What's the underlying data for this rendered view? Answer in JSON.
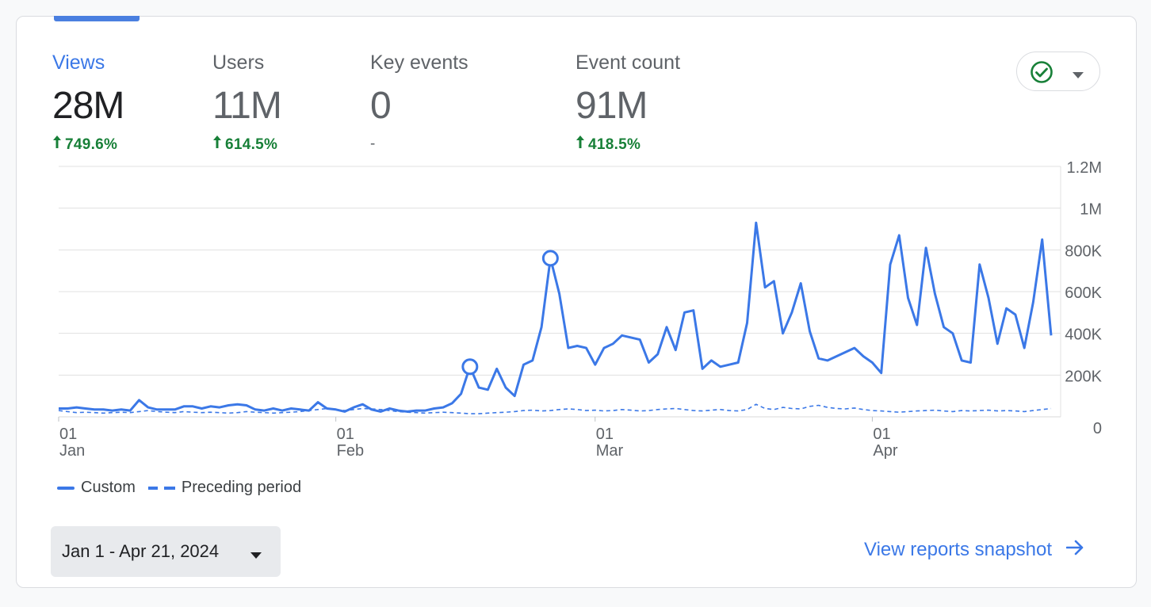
{
  "metrics": [
    {
      "label": "Views",
      "value": "28M",
      "change": "749.6%",
      "direction": "up",
      "active": true
    },
    {
      "label": "Users",
      "value": "11M",
      "change": "614.5%",
      "direction": "up",
      "active": false
    },
    {
      "label": "Key events",
      "value": "0",
      "change": "-",
      "direction": "none",
      "active": false
    },
    {
      "label": "Event count",
      "value": "91M",
      "change": "418.5%",
      "direction": "up",
      "active": false
    }
  ],
  "status_button": {
    "icon": "check-circle-icon",
    "caret_icon": "caret-down-icon",
    "check_color": "#188038"
  },
  "legend": {
    "current": "Custom",
    "previous": "Preceding period"
  },
  "date_range": {
    "label": "Jan 1 - Apr 21, 2024",
    "caret_icon": "caret-down-icon"
  },
  "snapshot_link": {
    "label": "View reports snapshot",
    "icon": "arrow-right-icon"
  },
  "colors": {
    "accent": "#3b78e7",
    "positive": "#188038",
    "grid": "#e0e0e0"
  },
  "chart_data": {
    "type": "line",
    "title": "",
    "xlabel": "",
    "ylabel": "",
    "x_start": "2024-01-01",
    "x_end": "2024-04-21",
    "x_ticks": [
      {
        "day": "01",
        "month": "Jan",
        "date": "2024-01-01"
      },
      {
        "day": "01",
        "month": "Feb",
        "date": "2024-02-01"
      },
      {
        "day": "01",
        "month": "Mar",
        "date": "2024-03-01"
      },
      {
        "day": "01",
        "month": "Apr",
        "date": "2024-04-01"
      }
    ],
    "y_ticks": [
      "0",
      "200K",
      "400K",
      "600K",
      "800K",
      "1M",
      "1.2M"
    ],
    "ylim": [
      0,
      1200000
    ],
    "grid": true,
    "axis_side": "right",
    "series": [
      {
        "name": "Custom",
        "style": "solid",
        "values": [
          40000,
          40000,
          45000,
          40000,
          35000,
          35000,
          30000,
          35000,
          30000,
          80000,
          45000,
          35000,
          35000,
          35000,
          50000,
          50000,
          40000,
          50000,
          45000,
          55000,
          60000,
          55000,
          35000,
          30000,
          40000,
          30000,
          40000,
          35000,
          30000,
          70000,
          40000,
          35000,
          25000,
          45000,
          60000,
          35000,
          25000,
          40000,
          30000,
          25000,
          30000,
          30000,
          40000,
          45000,
          65000,
          110000,
          240000,
          140000,
          130000,
          230000,
          140000,
          100000,
          250000,
          270000,
          430000,
          760000,
          590000,
          330000,
          340000,
          330000,
          250000,
          330000,
          350000,
          390000,
          380000,
          370000,
          260000,
          300000,
          430000,
          320000,
          500000,
          510000,
          230000,
          270000,
          240000,
          250000,
          260000,
          450000,
          930000,
          620000,
          650000,
          400000,
          500000,
          640000,
          410000,
          280000,
          270000,
          290000,
          310000,
          330000,
          290000,
          260000,
          210000,
          730000,
          870000,
          570000,
          440000,
          810000,
          590000,
          430000,
          400000,
          270000,
          260000,
          730000,
          570000,
          350000,
          520000,
          490000,
          330000,
          550000,
          850000,
          390000
        ]
      },
      {
        "name": "Preceding period",
        "style": "dashed",
        "values": [
          30000,
          25000,
          20000,
          22000,
          20000,
          18000,
          20000,
          22000,
          20000,
          25000,
          30000,
          25000,
          22000,
          20000,
          25000,
          22000,
          20000,
          22000,
          20000,
          18000,
          20000,
          25000,
          22000,
          20000,
          18000,
          20000,
          22000,
          25000,
          30000,
          35000,
          40000,
          35000,
          30000,
          35000,
          40000,
          38000,
          35000,
          30000,
          25000,
          22000,
          20000,
          18000,
          20000,
          22000,
          20000,
          18000,
          15000,
          15000,
          18000,
          20000,
          22000,
          25000,
          30000,
          32000,
          28000,
          30000,
          35000,
          38000,
          35000,
          30000,
          32000,
          28000,
          30000,
          35000,
          32000,
          28000,
          30000,
          35000,
          38000,
          40000,
          35000,
          30000,
          28000,
          32000,
          35000,
          30000,
          28000,
          35000,
          60000,
          40000,
          35000,
          45000,
          40000,
          38000,
          50000,
          55000,
          45000,
          40000,
          38000,
          42000,
          35000,
          30000,
          28000,
          25000,
          22000,
          25000,
          28000,
          30000,
          32000,
          28000,
          25000,
          30000,
          28000,
          30000,
          32000,
          28000,
          30000,
          28000,
          25000,
          30000,
          35000,
          40000
        ]
      }
    ]
  }
}
